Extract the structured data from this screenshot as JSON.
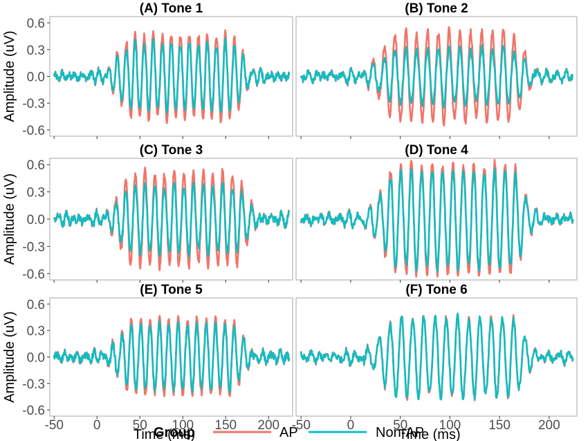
{
  "chart_data": {
    "type": "line",
    "layout": "faceted 3x2 grid, shared axes",
    "panels": [
      {
        "title": "(A) Tone 1",
        "envelope": {
          "start": 10,
          "end": 180,
          "ap_peak": 0.42,
          "nonap_peak": 0.34
        }
      },
      {
        "title": "(B) Tone 2",
        "envelope": {
          "start": 15,
          "end": 185,
          "ap_peak": 0.45,
          "nonap_peak": 0.27
        }
      },
      {
        "title": "(C) Tone 3",
        "envelope": {
          "start": 10,
          "end": 185,
          "ap_peak": 0.46,
          "nonap_peak": 0.33
        }
      },
      {
        "title": "(D) Tone 4",
        "envelope": {
          "start": 15,
          "end": 185,
          "ap_peak": 0.55,
          "nonap_peak": 0.5
        }
      },
      {
        "title": "(E) Tone 5",
        "envelope": {
          "start": 10,
          "end": 180,
          "ap_peak": 0.37,
          "nonap_peak": 0.33
        }
      },
      {
        "title": "(F) Tone 6",
        "envelope": {
          "start": 15,
          "end": 185,
          "ap_peak": 0.4,
          "nonap_peak": 0.42
        }
      }
    ],
    "x": {
      "label": "Time (ms)",
      "range": [
        -55,
        228
      ],
      "ticks": [
        -50,
        0,
        50,
        100,
        150,
        200
      ],
      "tick_labels": [
        "-50",
        "0",
        "50",
        "100",
        "150",
        "200"
      ]
    },
    "y": {
      "label": "Amplitude (uV)",
      "range": [
        -0.67,
        0.67
      ],
      "ticks": [
        0.6,
        0.3,
        0.0,
        -0.3,
        -0.6
      ],
      "tick_labels": [
        "0.6",
        "0.3",
        "0.0",
        "-0.3",
        "-0.6"
      ]
    },
    "legend": {
      "title": "Group",
      "position": "bottom"
    },
    "series": [
      {
        "name": "AP",
        "color": "#f07468"
      },
      {
        "name": "Non-AP",
        "color": "#12bcc0"
      }
    ],
    "grid": false
  }
}
